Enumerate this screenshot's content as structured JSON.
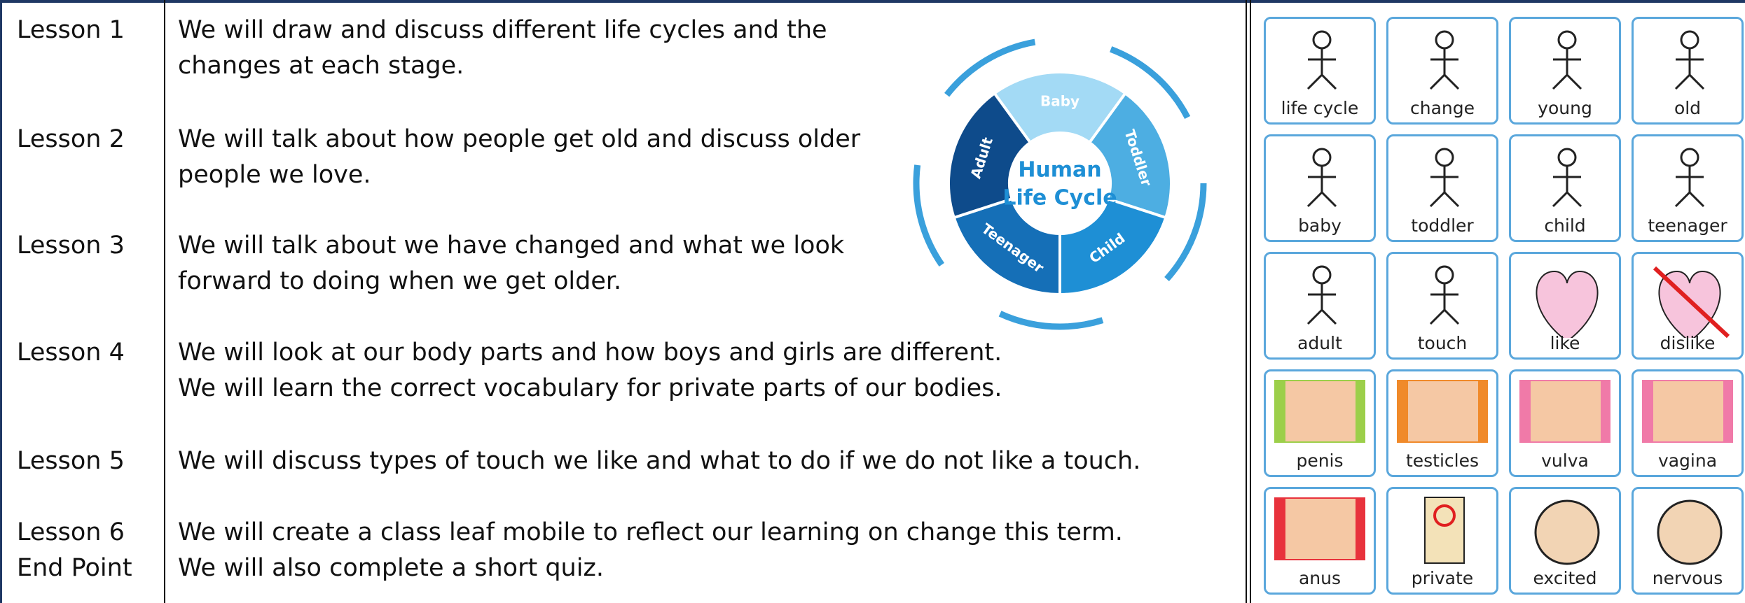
{
  "lessons": [
    {
      "label": [
        "Lesson 1"
      ],
      "text": [
        "We will draw and discuss different life cycles and the",
        "changes at each stage."
      ]
    },
    {
      "label": [
        "Lesson 2"
      ],
      "text": [
        "We will talk about how people get old and discuss older",
        "people we love."
      ]
    },
    {
      "label": [
        "Lesson 3"
      ],
      "text": [
        "We will talk about we have changed and what we look",
        "forward to doing when we get older."
      ]
    },
    {
      "label": [
        "Lesson 4"
      ],
      "text": [
        "We will look at our body parts and how boys and girls are different.",
        "We will learn the correct vocabulary for private parts of our bodies."
      ]
    },
    {
      "label": [
        "Lesson 5"
      ],
      "text": [
        "We will discuss types of touch we like and what to do if we do not like a touch."
      ]
    },
    {
      "label": [
        "Lesson 6",
        "End Point"
      ],
      "text": [
        "We will create a class leaf mobile to reflect our learning on change this term.",
        "We will also complete a short quiz."
      ]
    }
  ],
  "diagram": {
    "title": [
      "Human",
      "Life Cycle"
    ],
    "stages": [
      "Baby",
      "Toddler",
      "Child",
      "Teenager",
      "Adult"
    ]
  },
  "symbols": [
    "life cycle",
    "change",
    "young",
    "old",
    "baby",
    "toddler",
    "child",
    "teenager",
    "adult",
    "touch",
    "like",
    "dislike",
    "penis",
    "testicles",
    "vulva",
    "vagina",
    "anus",
    "private",
    "excited",
    "nervous"
  ]
}
